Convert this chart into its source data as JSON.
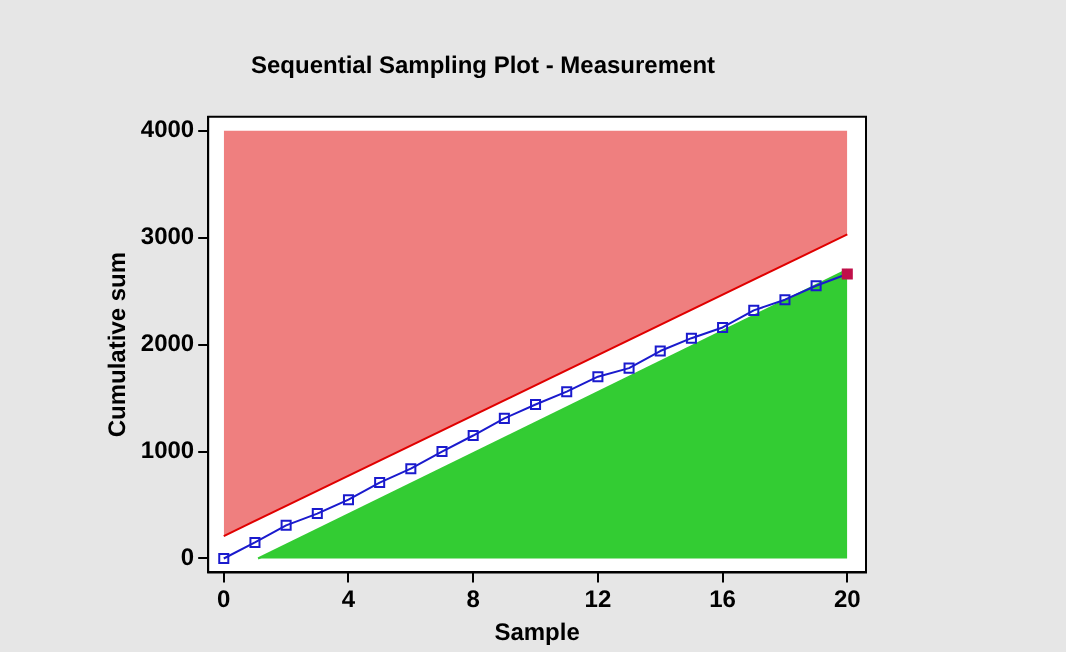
{
  "chart_data": {
    "type": "line",
    "title": "Sequential Sampling Plot - Measurement",
    "xlabel": "Sample",
    "ylabel": "Cumulative sum",
    "xlim": [
      -0.5,
      20.6
    ],
    "ylim": [
      -130,
      4130
    ],
    "xticks": [
      0,
      4,
      8,
      12,
      16,
      20
    ],
    "yticks": [
      0,
      1000,
      2000,
      3000,
      4000
    ],
    "legend": false,
    "series": [
      {
        "type": "line",
        "color": "#e00000",
        "x": [
          0,
          20
        ],
        "values": [
          210,
          3030
        ],
        "lower": [
          210,
          3030
        ],
        "upper": [
          4000,
          4000
        ]
      },
      {
        "type": "area",
        "color": "#33cc33",
        "x": [
          1.1,
          20
        ],
        "values": [
          0,
          2700
        ]
      },
      {
        "color": "#1a1acd",
        "marker": "square",
        "x": [
          0,
          1,
          2,
          3,
          4,
          5,
          6,
          7,
          8,
          9,
          10,
          11,
          12,
          13,
          14,
          15,
          16,
          17,
          18,
          19,
          20
        ],
        "values": [
          0,
          150,
          310,
          420,
          550,
          710,
          840,
          1000,
          1150,
          1310,
          1440,
          1560,
          1700,
          1780,
          1940,
          2060,
          2160,
          2320,
          2420,
          2550,
          2660
        ],
        "colors": [
          "#1a1acd",
          "#1a1acd",
          "#1a1acd",
          "#1a1acd",
          "#1a1acd",
          "#1a1acd",
          "#1a1acd",
          "#1a1acd",
          "#1a1acd",
          "#1a1acd",
          "#1a1acd",
          "#1a1acd",
          "#1a1acd",
          "#1a1acd",
          "#1a1acd",
          "#1a1acd",
          "#1a1acd",
          "#1a1acd",
          "#1a1acd",
          "#1a1acd",
          "#c0104a"
        ]
      }
    ]
  }
}
